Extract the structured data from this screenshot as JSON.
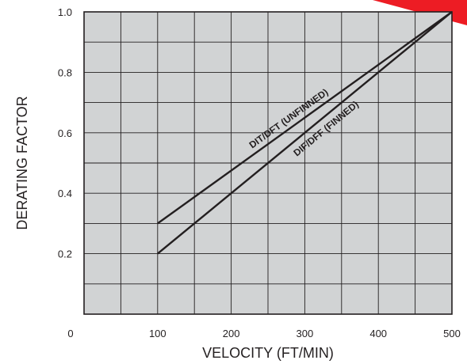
{
  "chart_data": {
    "type": "line",
    "title": "",
    "xlabel": "VELOCITY (FT/MIN)",
    "ylabel": "DERATING FACTOR",
    "xlim": [
      0,
      500
    ],
    "ylim": [
      0,
      1.0
    ],
    "x_ticks": [
      0,
      100,
      200,
      300,
      400,
      500
    ],
    "x_tick_labels": [
      "0",
      "100",
      "200",
      "300",
      "400",
      "500"
    ],
    "y_ticks": [
      0.2,
      0.4,
      0.6,
      0.8,
      1.0
    ],
    "y_tick_labels": [
      "0.2",
      "0.4",
      "0.6",
      "0.8",
      "1.0"
    ],
    "grid": true,
    "grid_step_x": 50,
    "grid_step_y": 0.1,
    "series": [
      {
        "name": "DIT/DFT (UNFINNED)",
        "x": [
          100,
          500
        ],
        "y": [
          0.3,
          1.0
        ]
      },
      {
        "name": "DIF/DFF (FINNED)",
        "x": [
          100,
          500
        ],
        "y": [
          0.2,
          1.0
        ]
      }
    ],
    "colors": {
      "plot_background": "#d1d3d4",
      "grid": "#231f20",
      "line": "#231f20",
      "corner_accent": "#ed1c24"
    }
  }
}
